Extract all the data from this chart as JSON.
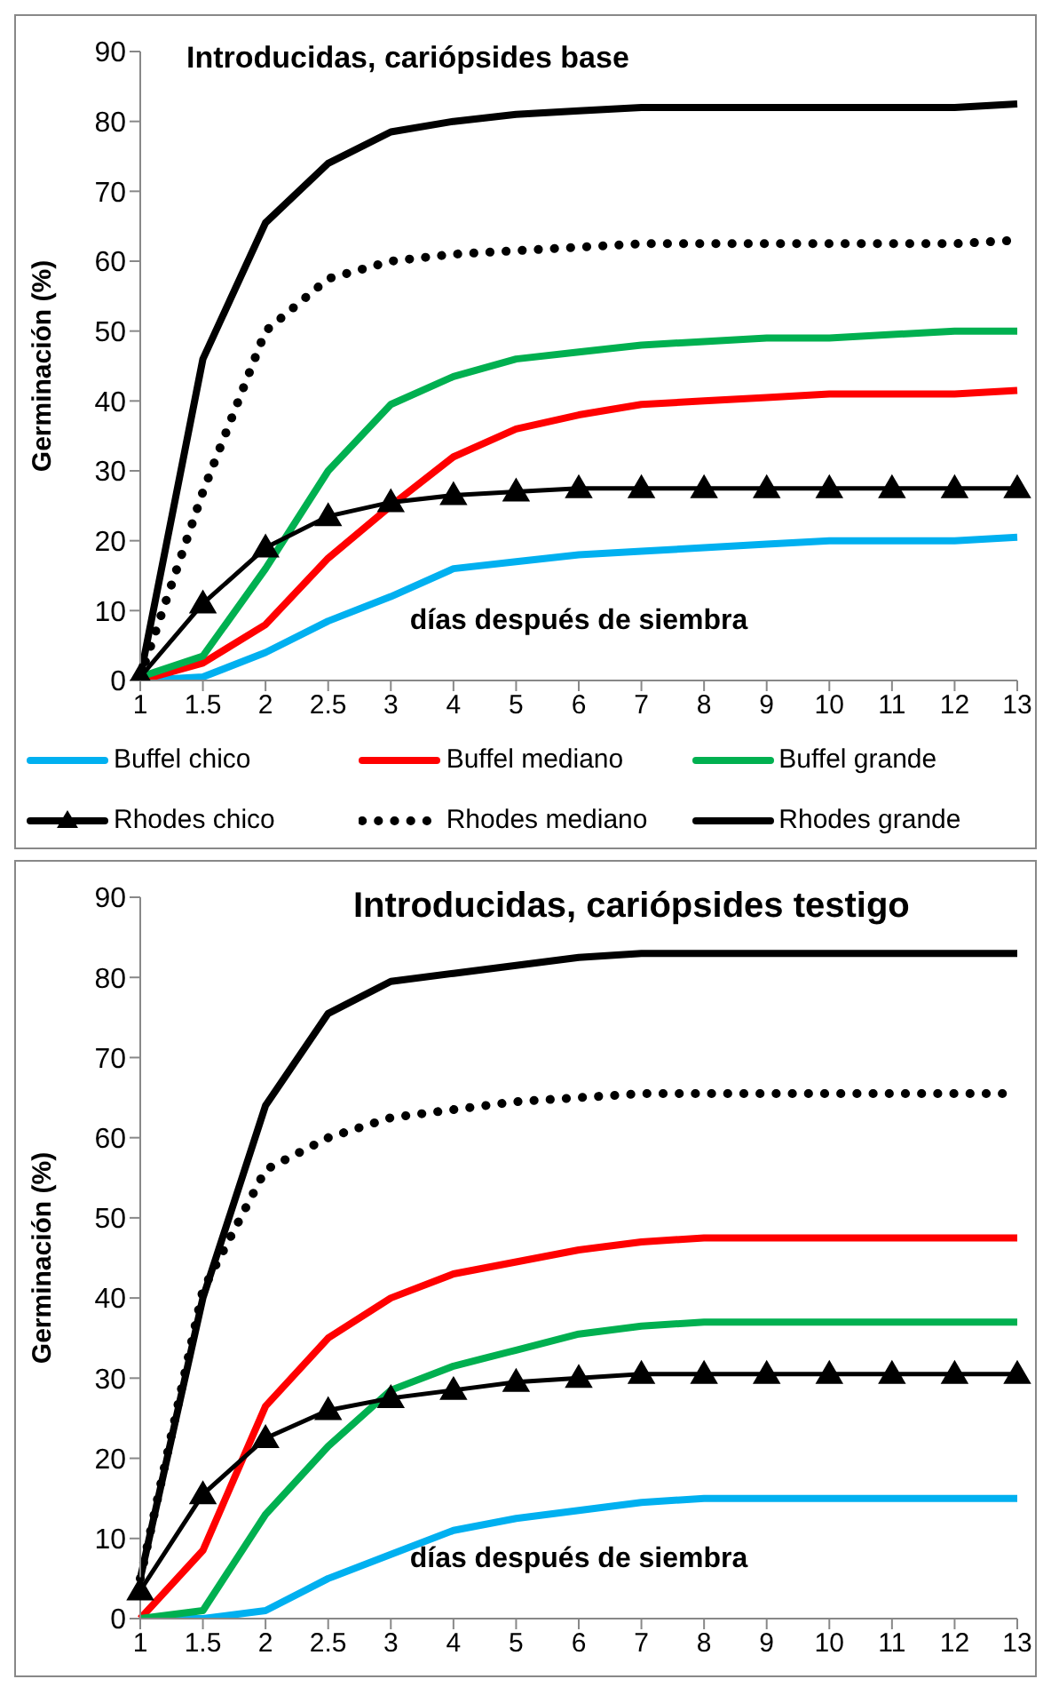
{
  "chart_data": [
    {
      "type": "line",
      "title": "Introducidas, cariópsides base",
      "xlabel": "días después de siembra",
      "ylabel": "Germinación (%)",
      "categories": [
        "1",
        "1.5",
        "2",
        "2.5",
        "3",
        "4",
        "5",
        "6",
        "7",
        "8",
        "9",
        "10",
        "11",
        "12",
        "13"
      ],
      "ylim": [
        0,
        90
      ],
      "yticks": [
        0,
        10,
        20,
        30,
        40,
        50,
        60,
        70,
        80,
        90
      ],
      "grid": false,
      "legend": "bottom",
      "series": [
        {
          "name": "Buffel chico",
          "color": "#00b0f0",
          "values": [
            0,
            0.5,
            4,
            8.5,
            12,
            16,
            17,
            18,
            18.5,
            19,
            19.5,
            20,
            20,
            20,
            20.5
          ]
        },
        {
          "name": "Buffel mediano",
          "color": "#ff0000",
          "values": [
            0,
            2.5,
            8,
            17.5,
            25,
            32,
            36,
            38,
            39.5,
            40,
            40.5,
            41,
            41,
            41,
            41.5
          ]
        },
        {
          "name": "Buffel grande",
          "color": "#00b050",
          "values": [
            0.5,
            3.5,
            16,
            30,
            39.5,
            43.5,
            46,
            47,
            48,
            48.5,
            49,
            49,
            49.5,
            50,
            50
          ]
        },
        {
          "name": "Rhodes chico",
          "color": "#000000",
          "marker": "triangle",
          "values": [
            0.5,
            11,
            19,
            23.5,
            25.5,
            26.5,
            27,
            27.5,
            27.5,
            27.5,
            27.5,
            27.5,
            27.5,
            27.5,
            27.5
          ]
        },
        {
          "name": "Rhodes mediano",
          "color": "#000000",
          "line_style": "dotted",
          "values": [
            0.5,
            27,
            50,
            57.5,
            60,
            61,
            61.5,
            62,
            62.5,
            62.5,
            62.5,
            62.5,
            62.5,
            62.5,
            63
          ]
        },
        {
          "name": "Rhodes grande",
          "color": "#000000",
          "values": [
            0.5,
            46,
            65.5,
            74,
            78.5,
            80,
            81,
            81.5,
            82,
            82,
            82,
            82,
            82,
            82,
            82.5
          ]
        }
      ]
    },
    {
      "type": "line",
      "title": "Introducidas, cariópsides testigo",
      "xlabel": "días después de siembra",
      "ylabel": "Germinación (%)",
      "categories": [
        "1",
        "1.5",
        "2",
        "2.5",
        "3",
        "4",
        "5",
        "6",
        "7",
        "8",
        "9",
        "10",
        "11",
        "12",
        "13"
      ],
      "ylim": [
        0,
        90
      ],
      "yticks": [
        0,
        10,
        20,
        30,
        40,
        50,
        60,
        70,
        80,
        90
      ],
      "grid": false,
      "series": [
        {
          "color": "#00b0f0",
          "values": [
            0,
            0,
            1,
            5,
            8,
            11,
            12.5,
            13.5,
            14.5,
            15,
            15,
            15,
            15,
            15,
            15
          ]
        },
        {
          "color": "#ff0000",
          "values": [
            0,
            8.5,
            26.5,
            35,
            40,
            43,
            44.5,
            46,
            47,
            47.5,
            47.5,
            47.5,
            47.5,
            47.5,
            47.5
          ]
        },
        {
          "color": "#00b050",
          "values": [
            0,
            1,
            13,
            21.5,
            28.5,
            31.5,
            33.5,
            35.5,
            36.5,
            37,
            37,
            37,
            37,
            37,
            37
          ]
        },
        {
          "color": "#000000",
          "marker": "triangle",
          "values": [
            3.5,
            15.5,
            22.5,
            26,
            27.5,
            28.5,
            29.5,
            30,
            30.5,
            30.5,
            30.5,
            30.5,
            30.5,
            30.5,
            30.5
          ]
        },
        {
          "color": "#000000",
          "line_style": "dotted",
          "values": [
            5,
            41,
            56,
            60,
            62.5,
            63.5,
            64.5,
            65,
            65.5,
            65.5,
            65.5,
            65.5,
            65.5,
            65.5,
            65.5
          ]
        },
        {
          "color": "#000000",
          "values": [
            5,
            40,
            64,
            75.5,
            79.5,
            80.5,
            81.5,
            82.5,
            83,
            83,
            83,
            83,
            83,
            83,
            83
          ]
        }
      ]
    }
  ]
}
